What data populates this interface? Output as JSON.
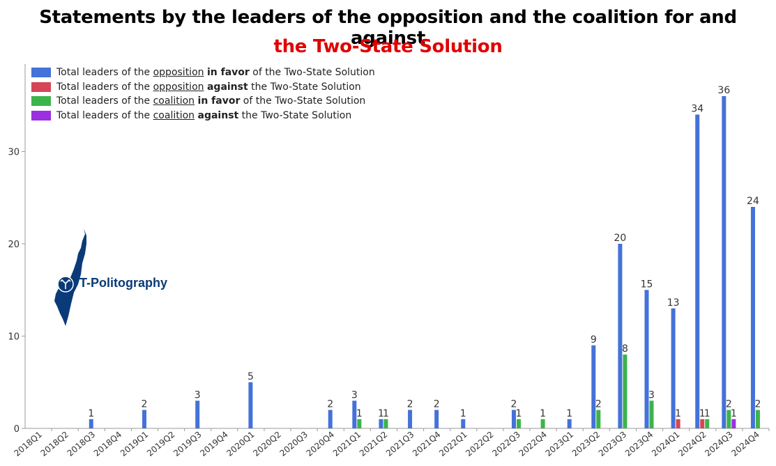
{
  "title": {
    "line1": "Statements by the leaders of the opposition and the coalition for and against",
    "line2": "the Two-State Solution",
    "line2_color": "#e00000"
  },
  "logo": {
    "text": "T-Politography",
    "color": "#0b3a78"
  },
  "legend": [
    {
      "pre": "Total leaders of the ",
      "u": "opposition",
      "mid": " ",
      "b": "in favor",
      "post": " of the Two-State Solution",
      "color": "#4472d8"
    },
    {
      "pre": "Total leaders of the ",
      "u": "opposition",
      "mid": " ",
      "b": "against",
      "post": " the Two-State Solution",
      "color": "#d64555"
    },
    {
      "pre": "Total leaders of the ",
      "u": "coalition",
      "mid": " ",
      "b": "in favor",
      "post": " of the Two-State Solution",
      "color": "#3cb44b"
    },
    {
      "pre": "Total leaders of the ",
      "u": "coalition",
      "mid": " ",
      "b": "against",
      "post": " the Two-State Solution",
      "color": "#9b30e0"
    }
  ],
  "chart_data": {
    "type": "bar",
    "title": "Statements by the leaders of the opposition and the coalition for and against the Two-State Solution",
    "xlabel": "",
    "ylabel": "",
    "ylim": [
      0,
      38
    ],
    "yticks": [
      0,
      10,
      20,
      30
    ],
    "grid": false,
    "legend_position": "top-left",
    "categories": [
      "2018Q1",
      "2018Q2",
      "2018Q3",
      "2018Q4",
      "2019Q1",
      "2019Q2",
      "2019Q3",
      "2019Q4",
      "2020Q1",
      "2020Q2",
      "2020Q3",
      "2020Q4",
      "2021Q1",
      "2021Q2",
      "2021Q3",
      "2021Q4",
      "2022Q1",
      "2022Q2",
      "2022Q3",
      "2022Q4",
      "2023Q1",
      "2023Q2",
      "2023Q3",
      "2023Q4",
      "2024Q1",
      "2024Q2",
      "2024Q3",
      "2024Q4"
    ],
    "series": [
      {
        "name": "Total leaders of the opposition in favor of the Two-State Solution",
        "color": "#4472d8",
        "values": [
          0,
          0,
          1,
          0,
          2,
          0,
          3,
          0,
          5,
          0,
          0,
          2,
          3,
          1,
          2,
          2,
          1,
          0,
          2,
          0,
          1,
          9,
          20,
          15,
          13,
          34,
          36,
          24
        ]
      },
      {
        "name": "Total leaders of the opposition against the Two-State Solution",
        "color": "#d64555",
        "values": [
          0,
          0,
          0,
          0,
          0,
          0,
          0,
          0,
          0,
          0,
          0,
          0,
          0,
          0,
          0,
          0,
          0,
          0,
          0,
          0,
          0,
          0,
          0,
          0,
          1,
          1,
          0,
          0
        ]
      },
      {
        "name": "Total leaders of the coalition in favor of the Two-State Solution",
        "color": "#3cb44b",
        "values": [
          0,
          0,
          0,
          0,
          0,
          0,
          0,
          0,
          0,
          0,
          0,
          0,
          1,
          1,
          0,
          0,
          0,
          0,
          1,
          1,
          0,
          2,
          8,
          3,
          0,
          1,
          2,
          2
        ]
      },
      {
        "name": "Total leaders of the coalition against the Two-State Solution",
        "color": "#9b30e0",
        "values": [
          0,
          0,
          0,
          0,
          0,
          0,
          0,
          0,
          0,
          0,
          0,
          0,
          0,
          0,
          0,
          0,
          0,
          0,
          0,
          0,
          0,
          0,
          0,
          0,
          0,
          0,
          1,
          0
        ]
      }
    ]
  }
}
